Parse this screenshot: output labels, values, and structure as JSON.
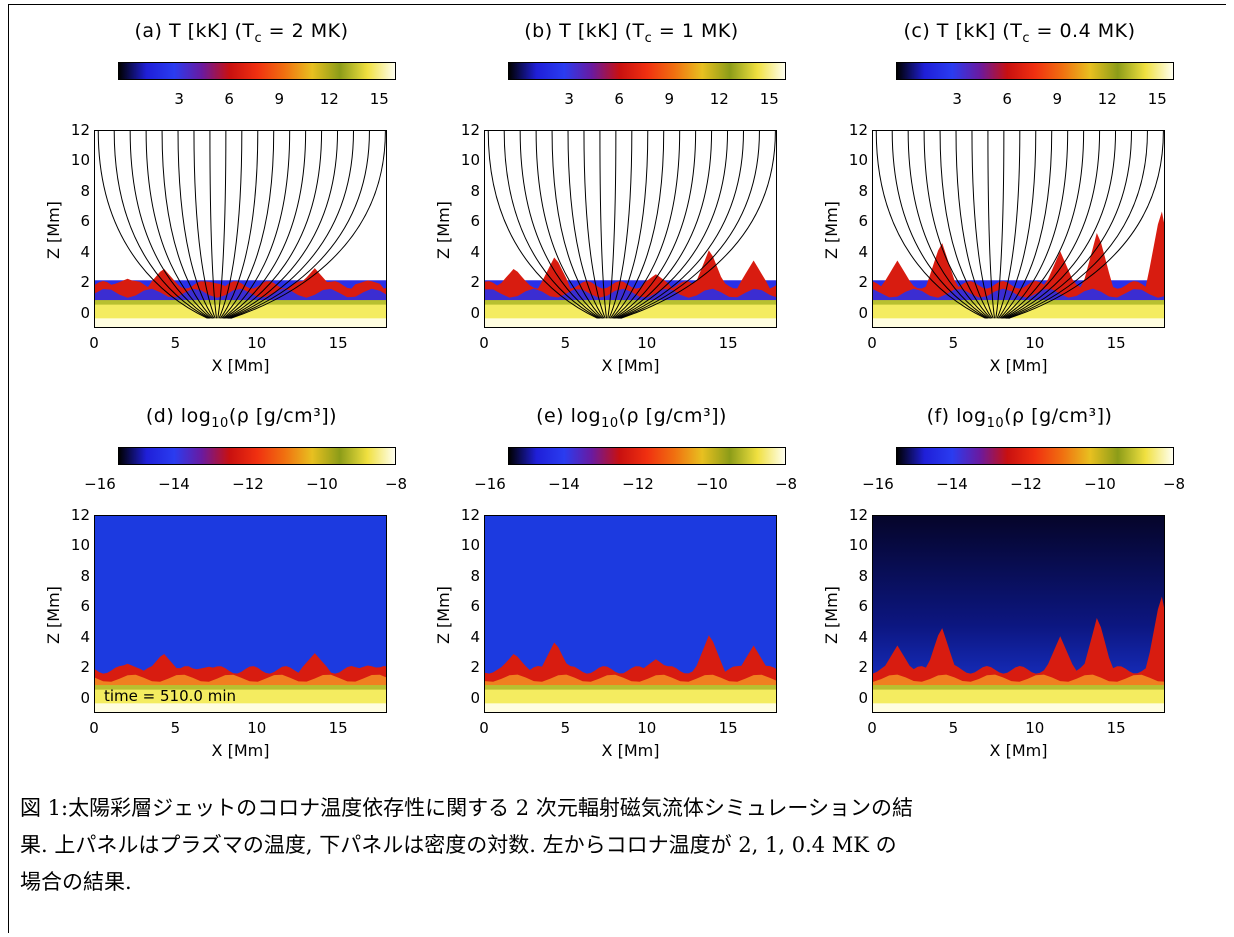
{
  "panels": [
    {
      "title_prefix": "(a) T [kK] (T",
      "title_sub": "c",
      "title_suffix": " = 2 MK)",
      "kind": "temp",
      "spikes": [
        [
          2,
          2.3
        ],
        [
          4.2,
          3.0
        ],
        [
          7,
          2.1
        ],
        [
          13.5,
          3.0
        ],
        [
          16.8,
          2.2
        ]
      ]
    },
    {
      "title_prefix": "(b) T [kK] (T",
      "title_sub": "c",
      "title_suffix": " = 1 MK)",
      "kind": "temp",
      "spikes": [
        [
          1.8,
          3.0
        ],
        [
          4.3,
          3.8
        ],
        [
          10.5,
          2.6
        ],
        [
          13.8,
          4.3
        ],
        [
          16.5,
          3.5
        ]
      ]
    },
    {
      "title_prefix": "(c) T [kK] (T",
      "title_sub": "c",
      "title_suffix": " = 0.4 MK)",
      "kind": "temp",
      "spikes": [
        [
          1.5,
          3.5
        ],
        [
          4.2,
          4.8
        ],
        [
          11.5,
          4.1
        ],
        [
          13.8,
          5.5
        ],
        [
          17.7,
          7.0
        ]
      ]
    },
    {
      "title_prefix": "(d) log",
      "title_sub": "10",
      "title_suffix": "(ρ [g/cm³])",
      "kind": "dens",
      "spikes": [
        [
          2,
          2.3
        ],
        [
          4.2,
          3.0
        ],
        [
          7,
          2.1
        ],
        [
          13.5,
          3.0
        ],
        [
          16.8,
          2.2
        ]
      ],
      "time_label": "time = 510.0 min"
    },
    {
      "title_prefix": "(e) log",
      "title_sub": "10",
      "title_suffix": "(ρ [g/cm³])",
      "kind": "dens",
      "spikes": [
        [
          1.8,
          3.0
        ],
        [
          4.3,
          3.8
        ],
        [
          10.5,
          2.6
        ],
        [
          13.8,
          4.3
        ],
        [
          16.5,
          3.5
        ]
      ]
    },
    {
      "title_prefix": "(f) log",
      "title_sub": "10",
      "title_suffix": "(ρ [g/cm³])",
      "kind": "dens",
      "spikes": [
        [
          1.5,
          3.5
        ],
        [
          4.2,
          4.8
        ],
        [
          11.5,
          4.1
        ],
        [
          13.8,
          5.5
        ],
        [
          17.7,
          7.0
        ]
      ]
    }
  ],
  "colorbar_ticks_temp": [
    "3",
    "6",
    "9",
    "12",
    "15"
  ],
  "colorbar_ticks_dens": [
    "−16",
    "−14",
    "−12",
    "−10",
    "−8"
  ],
  "y_ticks": [
    "12",
    "10",
    "8",
    "6",
    "4",
    "2",
    "0"
  ],
  "x_ticks": [
    "0",
    "5",
    "10",
    "15"
  ],
  "x_label": "X [Mm]",
  "y_label": "Z [Mm]",
  "colors": {
    "colormap": [
      "#000000",
      "#1f1fd8",
      "#2a3cf0",
      "#6a1aa0",
      "#c81010",
      "#f03010",
      "#f07010",
      "#e8c020",
      "#8c9c18",
      "#f0e040",
      "#fffff0"
    ]
  },
  "caption": {
    "line1": "図 1:太陽彩層ジェットのコロナ温度依存性に関する 2 次元輻射磁気流体シミュレーションの結",
    "line2": "果. 上パネルはプラズマの温度, 下パネルは密度の対数. 左からコロナ温度が 2, 1, 0.4 MK の",
    "line3": "場合の結果."
  }
}
